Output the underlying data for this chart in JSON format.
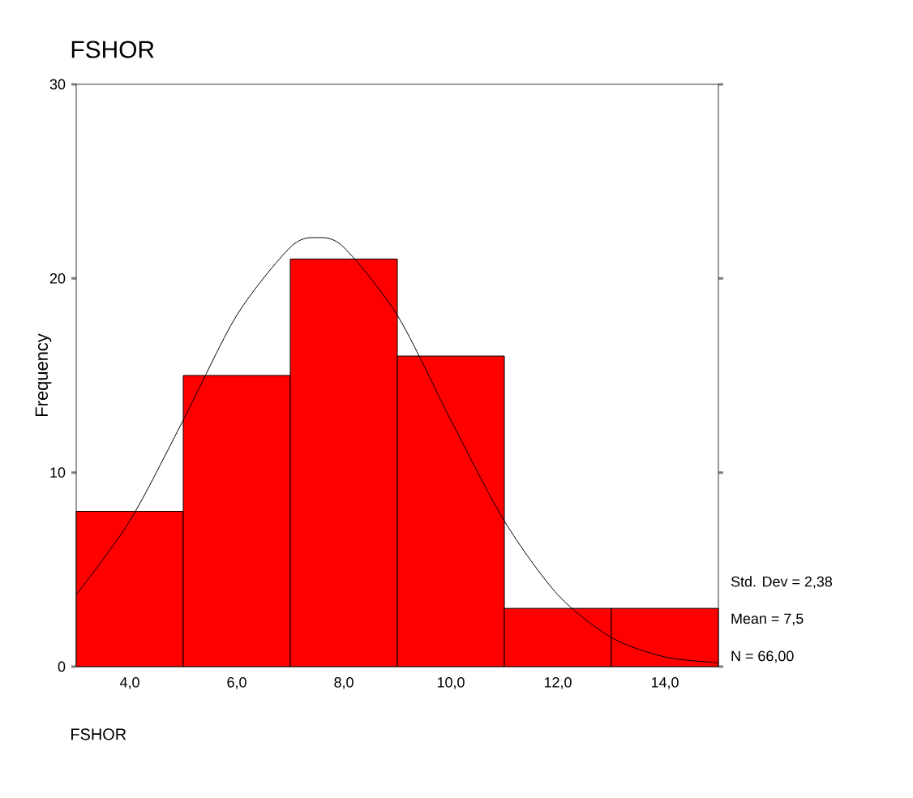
{
  "chart_data": {
    "type": "histogram",
    "title": "FSHOR",
    "xlabel": "FSHOR",
    "ylabel": "Frequency",
    "bins": [
      3,
      5,
      7,
      9,
      11,
      13,
      15
    ],
    "values": [
      8,
      15,
      21,
      16,
      3,
      3
    ],
    "color": "#ff0000",
    "series": [
      {
        "type": "line",
        "color": "#000000",
        "x": [
          3,
          4,
          5,
          6,
          7,
          7.5,
          8,
          9,
          10,
          11,
          12,
          13,
          14,
          15
        ],
        "values": [
          3.7,
          7.5,
          12.7,
          18.1,
          21.6,
          22.1,
          21.6,
          18.1,
          12.7,
          7.5,
          3.7,
          1.5,
          0.5,
          0.2
        ]
      }
    ],
    "xlim": [
      3,
      15
    ],
    "ylim": [
      0,
      30
    ],
    "xticks": [
      {
        "value": 4,
        "label": "4,0"
      },
      {
        "value": 6,
        "label": "6,0"
      },
      {
        "value": 8,
        "label": "8,0"
      },
      {
        "value": 10,
        "label": "10,0"
      },
      {
        "value": 12,
        "label": "12,0"
      },
      {
        "value": 14,
        "label": "14,0"
      }
    ],
    "yticks": [
      0,
      10,
      20,
      30
    ],
    "marker": "none",
    "grid": false,
    "annotations": [
      "Std. Dev = 2,38",
      "Mean = 7,5",
      "N = 66,00"
    ]
  }
}
